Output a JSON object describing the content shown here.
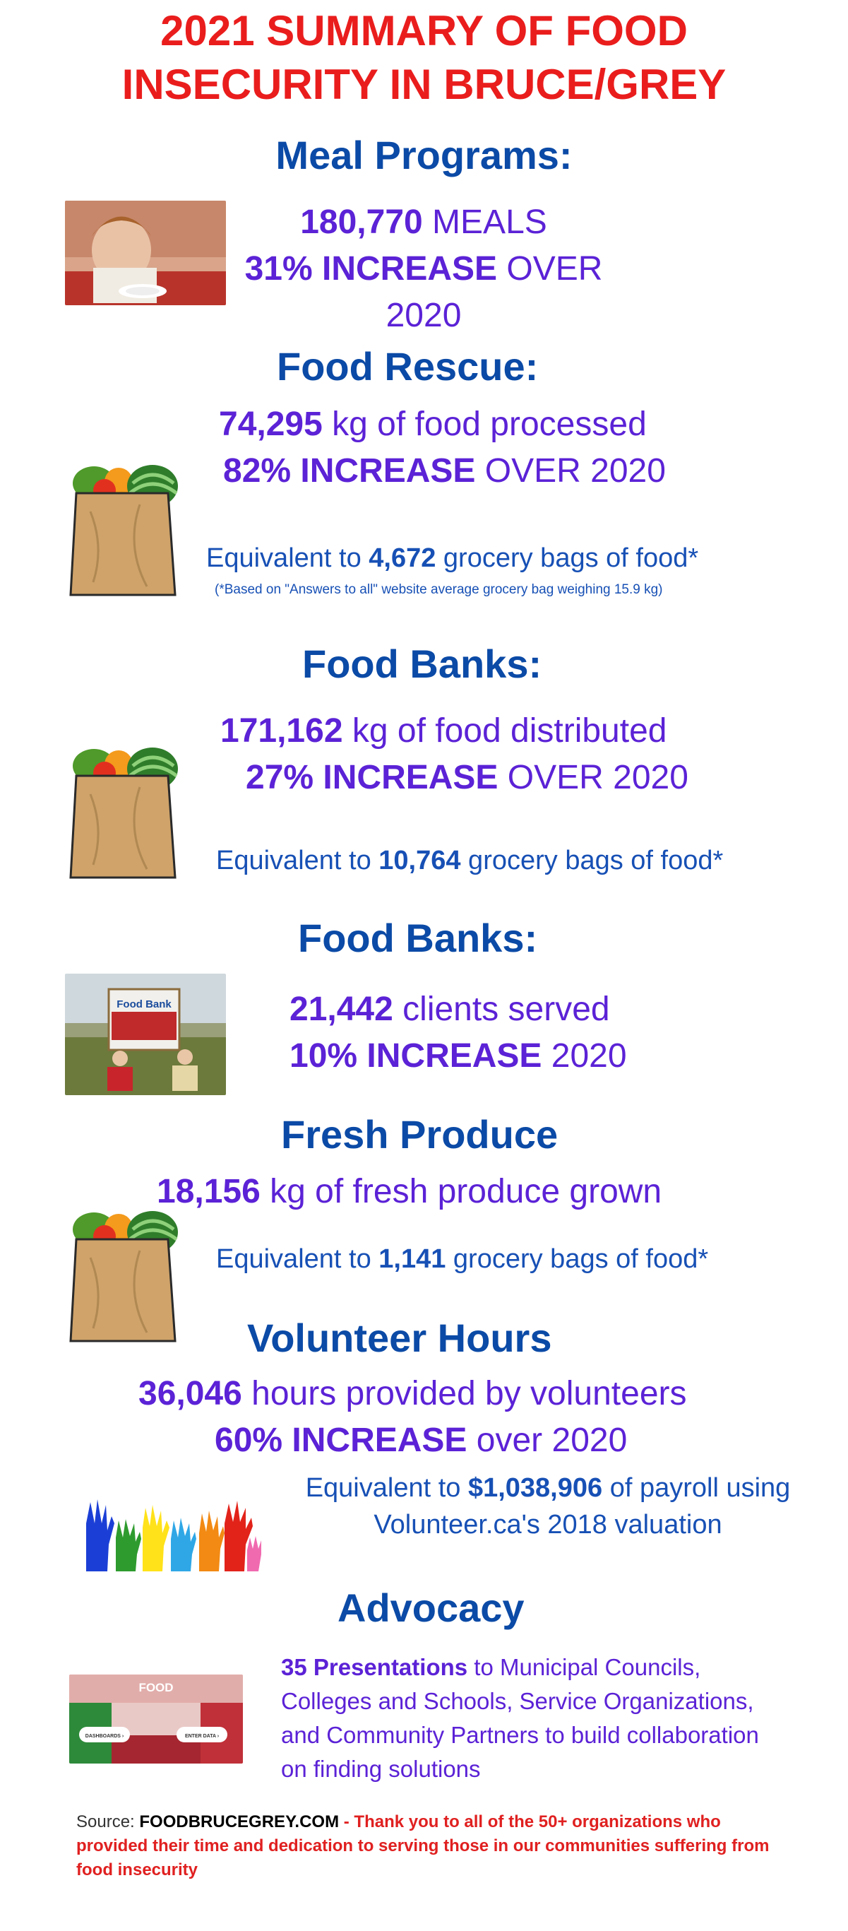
{
  "title": {
    "line1": "2021 SUMMARY OF FOOD",
    "line2": "INSECURITY IN BRUCE/GREY"
  },
  "meal": {
    "heading": "Meal Programs:",
    "n1": "180,770",
    "t1": " MEALS",
    "n2": "31% INCREASE",
    "t2": " OVER 2020"
  },
  "rescue": {
    "heading": "Food Rescue:",
    "n1": "74,295",
    "t1": " kg of food processed",
    "n2": "82% INCREASE",
    "t2": " OVER 2020",
    "eq_pre": "Equivalent to ",
    "eq_num": "4,672",
    "eq_post": " grocery bags of food*",
    "note": "(*Based on \"Answers to all\" website average grocery bag weighing 15.9 kg)"
  },
  "banks1": {
    "heading": "Food Banks:",
    "n1": "171,162",
    "t1": " kg of food distributed",
    "n2": "27% INCREASE",
    "t2": " OVER 2020",
    "eq_pre": "Equivalent to ",
    "eq_num": "10,764",
    "eq_post": " grocery bags of food*"
  },
  "banks2": {
    "heading": "Food Banks:",
    "n1": "21,442",
    "t1": " clients served",
    "n2": "10% INCREASE",
    "t2": " 2020",
    "sign_title": "Food Bank"
  },
  "produce": {
    "heading": "Fresh Produce",
    "n1": "18,156",
    "t1": " kg of fresh produce grown",
    "eq_pre": "Equivalent to ",
    "eq_num": "1,141",
    "eq_post": " grocery bags of food*"
  },
  "volunteer": {
    "heading": "Volunteer Hours",
    "n1": "36,046",
    "t1": " hours provided by volunteers",
    "n2": "60% INCREASE",
    "t2": " over 2020",
    "eq_pre": "Equivalent to ",
    "eq_num": "$1,038,906",
    "eq_post": " of payroll using",
    "eq_line2": "Volunteer.ca's 2018 valuation"
  },
  "advocacy": {
    "heading": "Advocacy",
    "bold": "35 Presentations",
    "l1": " to Municipal Councils,",
    "l2": "Colleges and Schools,  Service Organizations,",
    "l3": "and Community Partners to build  collaboration",
    "l4": "on finding solutions",
    "thumb_logo": "FOOD",
    "thumb_btn1": "DASHBOARDS ›",
    "thumb_btn2": "ENTER DATA ›"
  },
  "source": {
    "label": "Source:  ",
    "site": "FOODBRUCEGREY.COM",
    "dash": " - ",
    "thanks": "Thank you to all of the 50+ organizations  who provided  their time and dedication to serving those in our communities suffering from food insecurity"
  },
  "colors": {
    "title": "#ea1d1d",
    "heading": "#0b4aa6",
    "stat": "#5b22d6",
    "equiv": "#1750b5"
  },
  "icons": [
    "child-meal-photo",
    "grocery-bag-icon",
    "food-bank-photo",
    "volunteer-hands-icon",
    "website-thumbnail"
  ]
}
